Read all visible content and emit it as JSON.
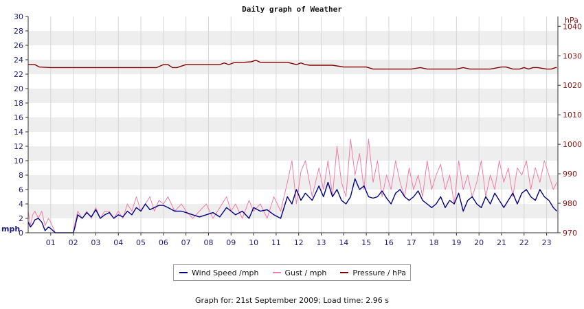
{
  "chart_data": {
    "type": "line",
    "title": "Daily graph of Weather",
    "footer": "Graph for: 21st September 2009; Load time: 2.96 s",
    "left_axis": {
      "label": "mph",
      "ylim": [
        0,
        30
      ],
      "ticks": [
        0,
        2,
        4,
        6,
        8,
        10,
        12,
        14,
        16,
        18,
        20,
        22,
        24,
        26,
        28,
        30
      ]
    },
    "right_axis": {
      "label": "hPa",
      "ylim": [
        970,
        1043.33
      ],
      "ticks": [
        970,
        980,
        990,
        1000,
        1010,
        1020,
        1030,
        1040
      ]
    },
    "x_axis": {
      "xlim": [
        0,
        23.5
      ],
      "tick_labels": [
        "01",
        "02",
        "03",
        "04",
        "05",
        "06",
        "07",
        "08",
        "09",
        "10",
        "11",
        "12",
        "13",
        "14",
        "15",
        "16",
        "17",
        "18",
        "19",
        "20",
        "21",
        "22",
        "23"
      ]
    },
    "grid": true,
    "legend_placement": "bottom",
    "series": [
      {
        "name": "Wind Speed /mph",
        "axis": "left",
        "color": "#000080",
        "x": [
          0.0,
          0.1,
          0.2,
          0.3,
          0.45,
          0.6,
          0.75,
          0.9,
          1.0,
          1.2,
          1.5,
          2.0,
          2.05,
          2.2,
          2.4,
          2.6,
          2.8,
          3.0,
          3.2,
          3.4,
          3.6,
          3.8,
          4.0,
          4.2,
          4.4,
          4.6,
          4.8,
          5.0,
          5.2,
          5.4,
          5.6,
          5.8,
          6.0,
          6.2,
          6.5,
          6.8,
          7.0,
          7.3,
          7.6,
          7.9,
          8.2,
          8.5,
          8.8,
          9.0,
          9.2,
          9.5,
          9.8,
          10.0,
          10.3,
          10.6,
          10.9,
          11.2,
          11.5,
          11.7,
          11.9,
          12.1,
          12.3,
          12.6,
          12.9,
          13.1,
          13.3,
          13.5,
          13.7,
          13.9,
          14.1,
          14.3,
          14.5,
          14.7,
          14.9,
          15.1,
          15.3,
          15.5,
          15.7,
          15.9,
          16.1,
          16.3,
          16.5,
          16.7,
          16.9,
          17.1,
          17.3,
          17.5,
          17.7,
          17.9,
          18.1,
          18.3,
          18.5,
          18.7,
          18.9,
          19.1,
          19.3,
          19.5,
          19.7,
          19.9,
          20.1,
          20.3,
          20.5,
          20.7,
          20.9,
          21.1,
          21.3,
          21.5,
          21.7,
          21.9,
          22.1,
          22.3,
          22.5,
          22.7,
          22.9,
          23.1,
          23.3,
          23.45
        ],
        "values": [
          1.5,
          0.8,
          1.2,
          1.8,
          2.0,
          1.5,
          0.3,
          0.8,
          0.6,
          0.0,
          0.0,
          0.0,
          0.5,
          2.5,
          2.0,
          2.8,
          2.2,
          3.2,
          2.0,
          2.5,
          2.8,
          2.0,
          2.5,
          2.2,
          3.0,
          2.5,
          3.5,
          3.0,
          4.0,
          3.2,
          3.5,
          3.8,
          3.8,
          3.5,
          3.0,
          3.0,
          2.8,
          2.5,
          2.2,
          2.5,
          2.8,
          2.2,
          3.5,
          3.0,
          2.5,
          3.0,
          2.0,
          3.5,
          3.0,
          3.2,
          2.5,
          2.0,
          5.0,
          4.0,
          6.0,
          4.5,
          5.5,
          4.5,
          6.5,
          5.0,
          7.0,
          5.0,
          6.0,
          4.5,
          4.0,
          5.0,
          7.5,
          6.0,
          6.5,
          5.0,
          4.8,
          5.0,
          5.8,
          4.8,
          4.0,
          5.5,
          6.0,
          5.0,
          4.5,
          5.0,
          5.8,
          4.5,
          4.0,
          3.5,
          4.0,
          5.0,
          3.5,
          4.5,
          4.0,
          5.5,
          3.0,
          4.5,
          5.0,
          4.0,
          3.5,
          5.0,
          4.0,
          5.5,
          4.5,
          3.5,
          4.5,
          5.5,
          4.0,
          5.5,
          6.0,
          5.0,
          4.5,
          6.0,
          5.0,
          4.5,
          3.5,
          3.0
        ]
      },
      {
        "name": "Gust / mph",
        "axis": "left",
        "color": "#f47aa8",
        "x": [
          0.0,
          0.1,
          0.2,
          0.3,
          0.45,
          0.6,
          0.75,
          0.9,
          1.0,
          1.2,
          1.5,
          2.0,
          2.05,
          2.2,
          2.4,
          2.6,
          2.8,
          3.0,
          3.2,
          3.4,
          3.6,
          3.8,
          4.0,
          4.2,
          4.4,
          4.6,
          4.8,
          5.0,
          5.2,
          5.4,
          5.6,
          5.8,
          6.0,
          6.2,
          6.5,
          6.8,
          7.0,
          7.3,
          7.6,
          7.9,
          8.2,
          8.5,
          8.8,
          9.0,
          9.2,
          9.5,
          9.8,
          10.0,
          10.3,
          10.6,
          10.9,
          11.2,
          11.5,
          11.7,
          11.9,
          12.1,
          12.3,
          12.6,
          12.9,
          13.1,
          13.3,
          13.5,
          13.7,
          13.9,
          14.1,
          14.3,
          14.5,
          14.7,
          14.9,
          15.1,
          15.3,
          15.5,
          15.7,
          15.9,
          16.1,
          16.3,
          16.5,
          16.7,
          16.9,
          17.1,
          17.3,
          17.5,
          17.7,
          17.9,
          18.1,
          18.3,
          18.5,
          18.7,
          18.9,
          19.1,
          19.3,
          19.5,
          19.7,
          19.9,
          20.1,
          20.3,
          20.5,
          20.7,
          20.9,
          21.1,
          21.3,
          21.5,
          21.7,
          21.9,
          22.1,
          22.3,
          22.5,
          22.7,
          22.9,
          23.1,
          23.3,
          23.45
        ],
        "values": [
          3.0,
          1.0,
          2.5,
          3.0,
          2.0,
          3.0,
          1.0,
          2.0,
          1.5,
          0.0,
          0.0,
          0.0,
          1.0,
          3.0,
          2.0,
          3.0,
          2.0,
          3.5,
          2.0,
          3.0,
          3.0,
          2.0,
          3.0,
          2.0,
          4.0,
          3.0,
          5.0,
          3.0,
          4.0,
          5.0,
          3.0,
          4.5,
          4.0,
          5.0,
          3.0,
          4.0,
          3.0,
          2.0,
          3.0,
          4.0,
          2.0,
          3.5,
          5.0,
          3.0,
          4.0,
          2.0,
          4.5,
          3.0,
          4.0,
          2.0,
          5.0,
          3.0,
          7.0,
          10.0,
          4.0,
          8.5,
          10.0,
          5.0,
          9.0,
          6.0,
          10.0,
          5.0,
          12.0,
          7.0,
          5.0,
          13.0,
          8.0,
          11.0,
          6.0,
          13.0,
          7.0,
          10.0,
          5.0,
          8.0,
          6.0,
          10.0,
          7.0,
          5.0,
          9.0,
          6.0,
          8.0,
          5.0,
          10.0,
          6.0,
          8.0,
          9.5,
          6.0,
          8.0,
          4.0,
          10.0,
          6.0,
          8.0,
          5.0,
          7.0,
          10.0,
          5.0,
          8.0,
          6.0,
          10.0,
          7.0,
          9.0,
          5.0,
          9.0,
          8.0,
          10.0,
          6.0,
          9.0,
          7.0,
          10.0,
          8.0,
          6.0,
          7.0
        ]
      },
      {
        "name": "Pressure / hPa",
        "axis": "right",
        "color": "#800000",
        "x": [
          0.0,
          0.3,
          0.5,
          1.0,
          2.0,
          3.0,
          4.0,
          5.0,
          5.7,
          6.0,
          6.2,
          6.4,
          6.6,
          7.0,
          8.0,
          8.5,
          8.7,
          8.9,
          9.1,
          9.3,
          9.6,
          9.9,
          10.1,
          10.3,
          10.6,
          11.0,
          11.5,
          11.9,
          12.1,
          12.3,
          12.5,
          13.0,
          13.5,
          14.0,
          14.5,
          15.0,
          15.3,
          15.5,
          16.0,
          16.5,
          17.0,
          17.4,
          17.7,
          18.0,
          18.5,
          19.0,
          19.3,
          19.6,
          20.0,
          20.5,
          21.0,
          21.2,
          21.5,
          21.8,
          22.0,
          22.2,
          22.4,
          22.6,
          23.0,
          23.2,
          23.4,
          23.45
        ],
        "values": [
          1027.0,
          1027.0,
          1026.2,
          1026.0,
          1026.0,
          1026.0,
          1026.0,
          1026.0,
          1026.0,
          1027.0,
          1027.0,
          1026.0,
          1026.0,
          1027.0,
          1027.0,
          1027.0,
          1027.6,
          1027.0,
          1027.6,
          1027.8,
          1027.8,
          1028.0,
          1028.5,
          1027.8,
          1027.8,
          1027.8,
          1027.8,
          1027.0,
          1027.6,
          1027.0,
          1026.8,
          1026.8,
          1026.8,
          1026.2,
          1026.2,
          1026.2,
          1025.5,
          1025.5,
          1025.5,
          1025.5,
          1025.5,
          1026.0,
          1025.5,
          1025.5,
          1025.5,
          1025.5,
          1026.0,
          1025.5,
          1025.5,
          1025.5,
          1026.2,
          1026.2,
          1025.5,
          1025.5,
          1026.0,
          1025.5,
          1026.0,
          1026.0,
          1025.5,
          1025.5,
          1026.0,
          1026.0
        ]
      }
    ]
  }
}
